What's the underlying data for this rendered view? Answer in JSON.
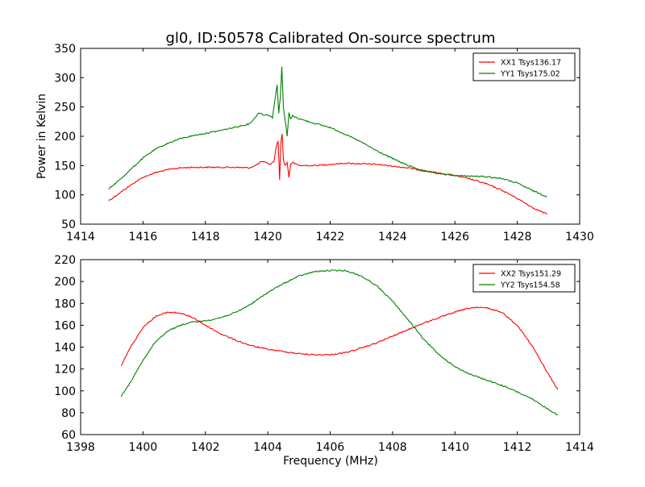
{
  "chart_data": [
    {
      "type": "line",
      "title": "gl0, ID:50578 Calibrated On-source spectrum",
      "xlabel": "",
      "ylabel": "Power in Kelvin",
      "xlim": [
        1414,
        1430
      ],
      "ylim": [
        50,
        350
      ],
      "xticks": [
        1414,
        1416,
        1418,
        1420,
        1422,
        1424,
        1426,
        1428,
        1430
      ],
      "yticks": [
        50,
        100,
        150,
        200,
        250,
        300,
        350
      ],
      "legend": "top-right",
      "series": [
        {
          "name": "XX1 Tsys136.17",
          "color": "#ff0000",
          "x": [
            1414.9,
            1415.3,
            1415.7,
            1416.0,
            1416.4,
            1416.8,
            1417.2,
            1417.6,
            1418.0,
            1418.5,
            1419.0,
            1419.4,
            1419.6,
            1419.8,
            1420.0,
            1420.1,
            1420.2,
            1420.28,
            1420.33,
            1420.38,
            1420.42,
            1420.46,
            1420.5,
            1420.55,
            1420.62,
            1420.68,
            1420.73,
            1420.8,
            1421.0,
            1421.5,
            1422.0,
            1422.5,
            1423.0,
            1423.5,
            1424.0,
            1424.5,
            1425.0,
            1425.5,
            1426.0,
            1426.5,
            1427.0,
            1427.5,
            1428.0,
            1428.5,
            1428.95
          ],
          "y": [
            90,
            105,
            120,
            130,
            138,
            143,
            146,
            147,
            147,
            147,
            147,
            146,
            150,
            157,
            154,
            152,
            158,
            185,
            192,
            125,
            190,
            205,
            160,
            150,
            155,
            130,
            152,
            155,
            150,
            150,
            152,
            154,
            153,
            152,
            149,
            146,
            141,
            137,
            133,
            127,
            119,
            108,
            94,
            78,
            67
          ]
        },
        {
          "name": "YY1 Tsys175.02",
          "color": "#008000",
          "x": [
            1414.9,
            1415.3,
            1415.7,
            1416.0,
            1416.4,
            1416.8,
            1417.2,
            1417.6,
            1418.0,
            1418.5,
            1419.0,
            1419.4,
            1419.6,
            1419.7,
            1419.9,
            1420.0,
            1420.15,
            1420.25,
            1420.3,
            1420.35,
            1420.4,
            1420.45,
            1420.5,
            1420.55,
            1420.62,
            1420.68,
            1420.73,
            1420.8,
            1421.0,
            1421.5,
            1422.0,
            1422.5,
            1423.0,
            1423.5,
            1424.0,
            1424.5,
            1425.0,
            1425.5,
            1426.0,
            1426.5,
            1427.0,
            1427.5,
            1428.0,
            1428.5,
            1428.95
          ],
          "y": [
            110,
            128,
            148,
            163,
            178,
            188,
            196,
            201,
            205,
            210,
            216,
            221,
            232,
            240,
            236,
            237,
            232,
            270,
            288,
            240,
            265,
            318,
            250,
            230,
            200,
            240,
            230,
            235,
            230,
            222,
            215,
            203,
            190,
            175,
            162,
            150,
            141,
            136,
            133,
            132,
            131,
            128,
            120,
            107,
            97
          ]
        }
      ]
    },
    {
      "type": "line",
      "title": "",
      "xlabel": "Frequency (MHz)",
      "ylabel": "",
      "xlim": [
        1398,
        1414
      ],
      "ylim": [
        60,
        220
      ],
      "xticks": [
        1398,
        1400,
        1402,
        1404,
        1406,
        1408,
        1410,
        1412,
        1414
      ],
      "yticks": [
        60,
        80,
        100,
        120,
        140,
        160,
        180,
        200,
        220
      ],
      "legend": "top-right",
      "series": [
        {
          "name": "XX2 Tsys151.29",
          "color": "#ff0000",
          "x": [
            1399.3,
            1399.6,
            1400.0,
            1400.4,
            1400.8,
            1401.2,
            1401.6,
            1402.0,
            1402.5,
            1403.0,
            1403.5,
            1404.0,
            1404.5,
            1405.0,
            1405.5,
            1406.0,
            1406.5,
            1407.0,
            1407.5,
            1408.0,
            1408.5,
            1409.0,
            1409.5,
            1410.0,
            1410.5,
            1411.0,
            1411.5,
            1412.0,
            1412.5,
            1413.0,
            1413.3
          ],
          "y": [
            123,
            140,
            158,
            168,
            172,
            171,
            167,
            160,
            152,
            146,
            141,
            138,
            136,
            134,
            133,
            133,
            135,
            139,
            144,
            150,
            156,
            162,
            167,
            172,
            176,
            176,
            172,
            160,
            140,
            115,
            101
          ]
        },
        {
          "name": "YY2 Tsys154.58",
          "color": "#008000",
          "x": [
            1399.3,
            1399.6,
            1400.0,
            1400.4,
            1400.8,
            1401.2,
            1401.6,
            1402.0,
            1402.5,
            1403.0,
            1403.5,
            1404.0,
            1404.5,
            1405.0,
            1405.5,
            1406.0,
            1406.5,
            1407.0,
            1407.5,
            1408.0,
            1408.5,
            1409.0,
            1409.5,
            1410.0,
            1410.5,
            1411.0,
            1411.5,
            1412.0,
            1412.5,
            1413.0,
            1413.3
          ],
          "y": [
            95,
            108,
            128,
            145,
            155,
            160,
            163,
            164,
            167,
            172,
            180,
            190,
            198,
            205,
            209,
            210,
            210,
            205,
            196,
            182,
            165,
            147,
            133,
            122,
            115,
            110,
            105,
            99,
            92,
            83,
            78
          ]
        }
      ]
    }
  ]
}
